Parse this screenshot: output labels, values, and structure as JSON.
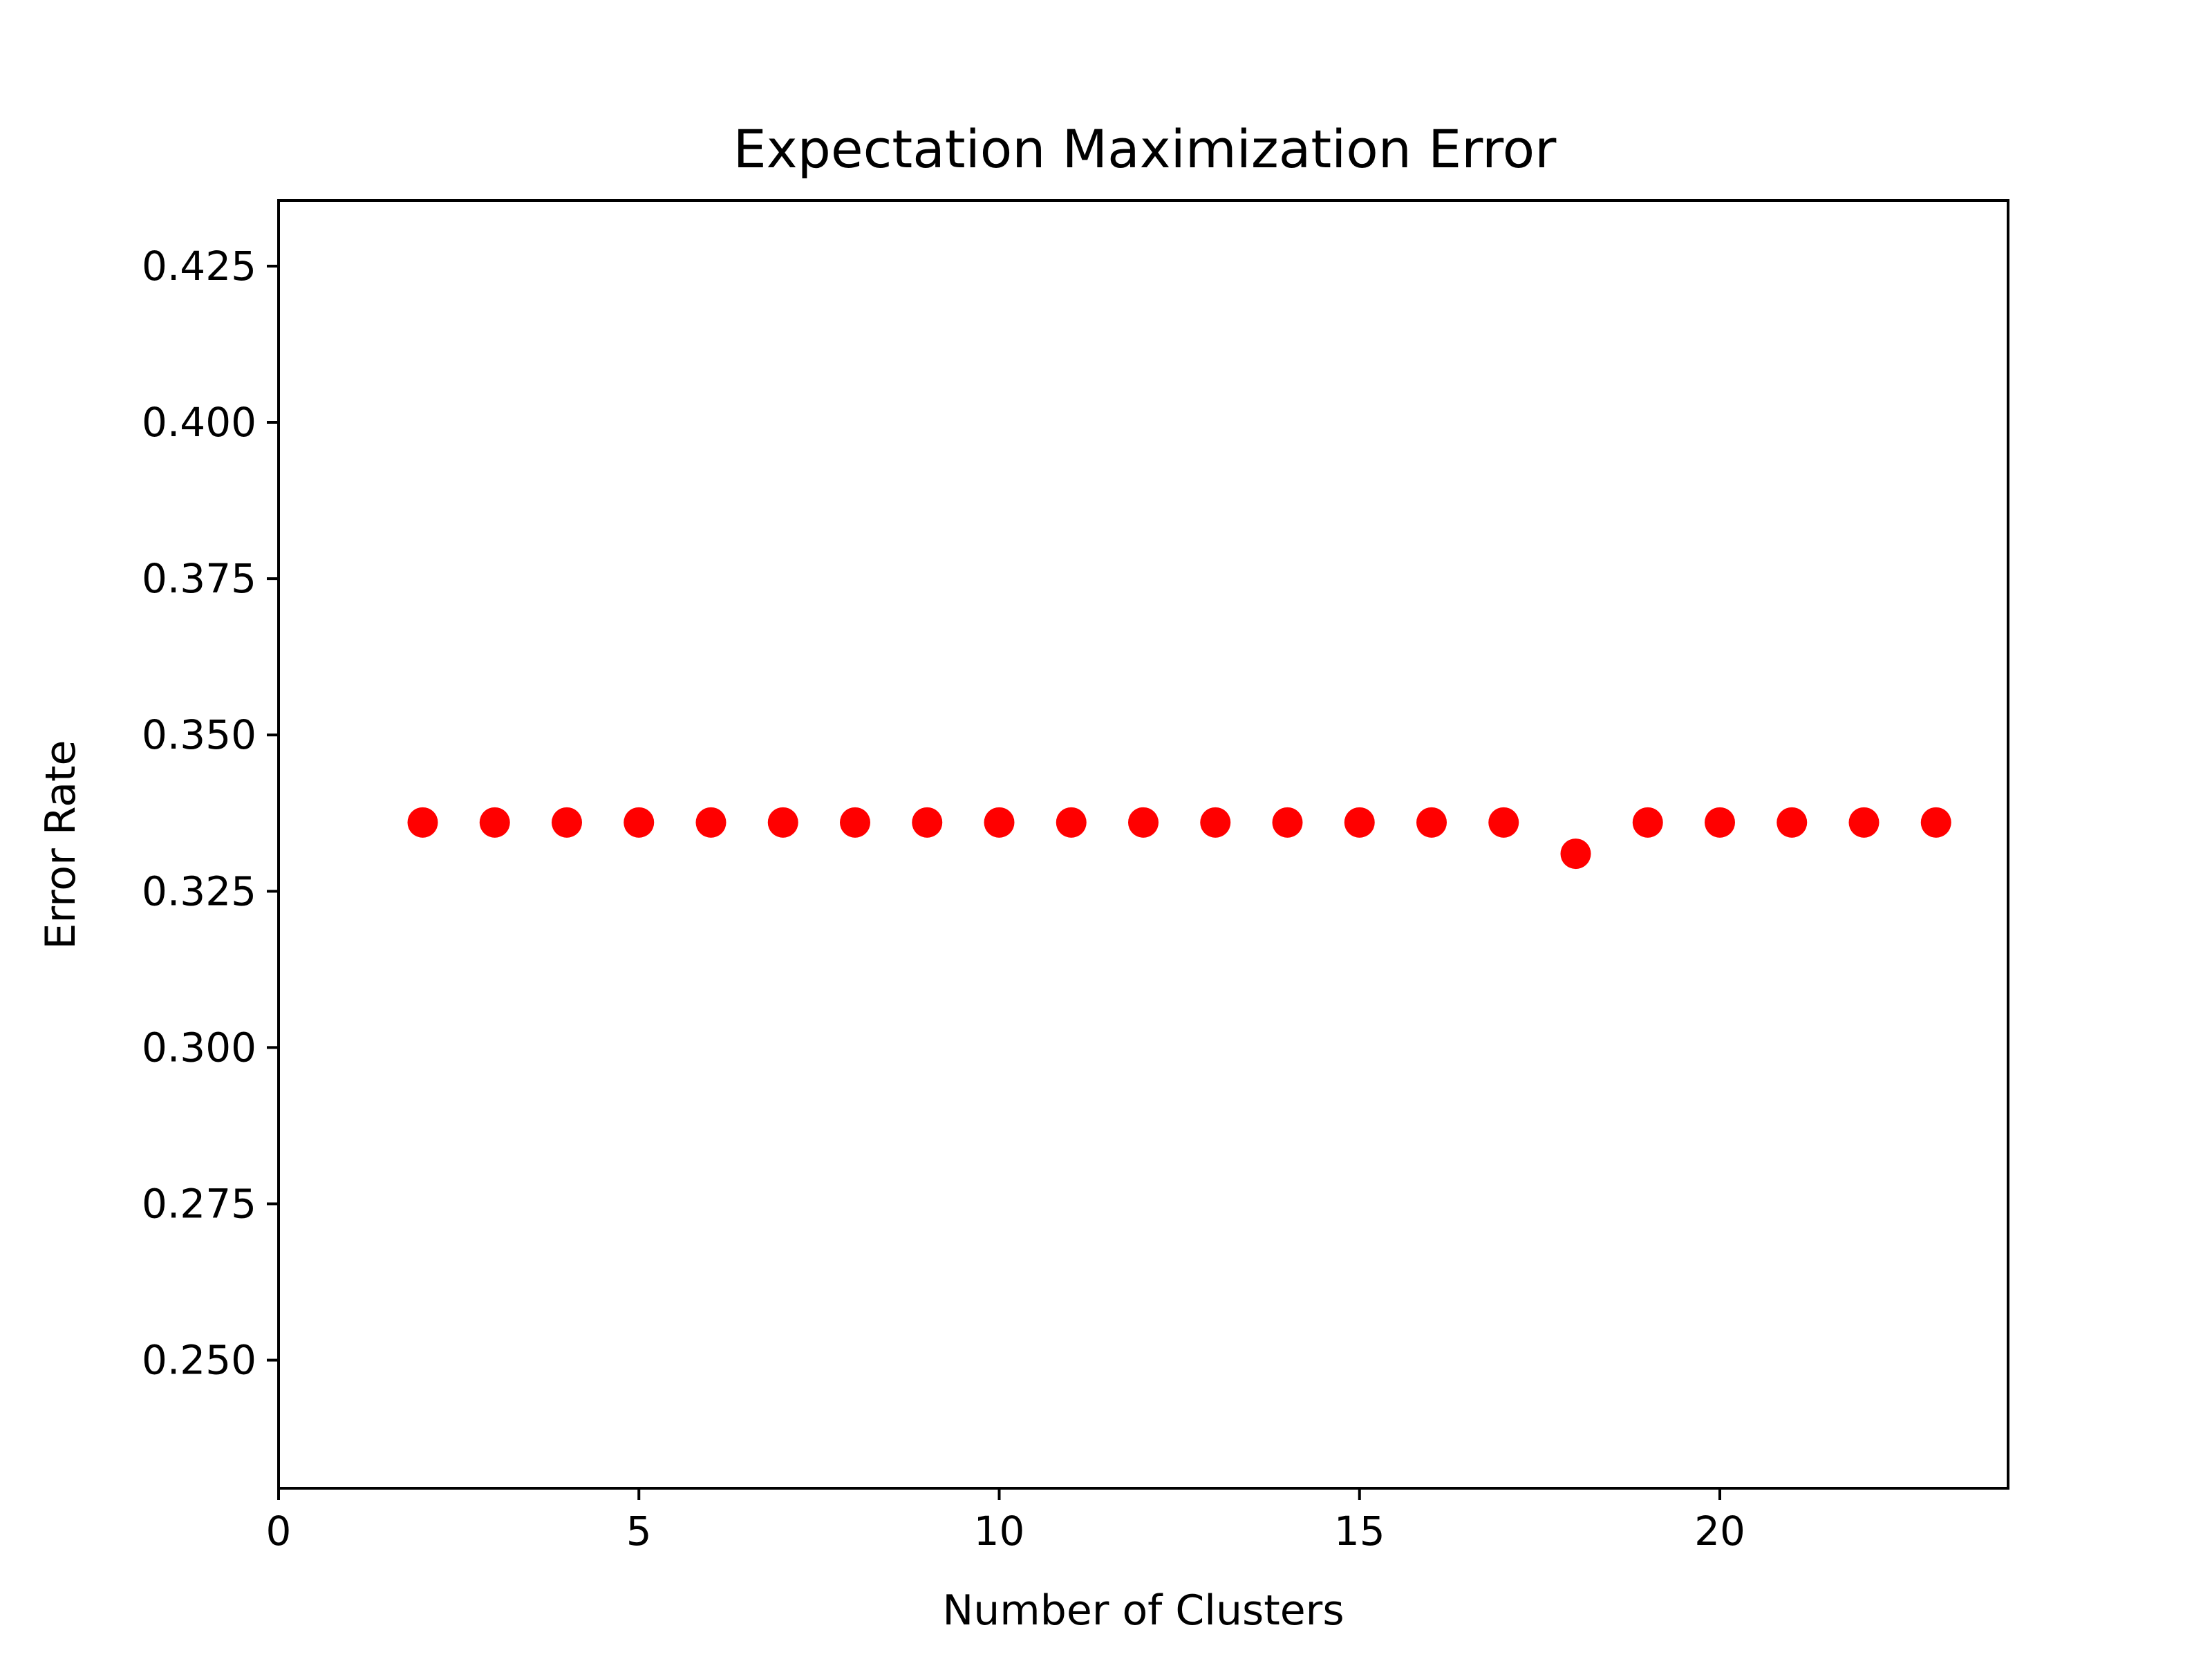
{
  "chart_data": {
    "type": "scatter",
    "title": "Expectation Maximization Error",
    "xlabel": "Number of Clusters",
    "ylabel": "Error Rate",
    "xlim": [
      0,
      24
    ],
    "ylim": [
      0.2295,
      0.4355
    ],
    "x_ticks": [
      0,
      5,
      10,
      15,
      20
    ],
    "y_ticks": [
      0.25,
      0.275,
      0.3,
      0.325,
      0.35,
      0.375,
      0.4,
      0.425
    ],
    "x_tick_labels": [
      "0",
      "5",
      "10",
      "15",
      "20"
    ],
    "y_tick_labels": [
      "0.250",
      "0.275",
      "0.300",
      "0.325",
      "0.350",
      "0.375",
      "0.400",
      "0.425"
    ],
    "grid": false,
    "marker_color": "#ff0000",
    "series": [
      {
        "x": [
          2,
          3,
          4,
          5,
          6,
          7,
          8,
          9,
          10,
          11,
          12,
          13,
          14,
          15,
          16,
          17,
          18,
          19,
          20,
          21,
          22,
          23
        ],
        "y": [
          0.336,
          0.336,
          0.336,
          0.336,
          0.336,
          0.336,
          0.336,
          0.336,
          0.336,
          0.336,
          0.336,
          0.336,
          0.336,
          0.336,
          0.336,
          0.336,
          0.331,
          0.336,
          0.336,
          0.336,
          0.336,
          0.336
        ]
      }
    ]
  }
}
